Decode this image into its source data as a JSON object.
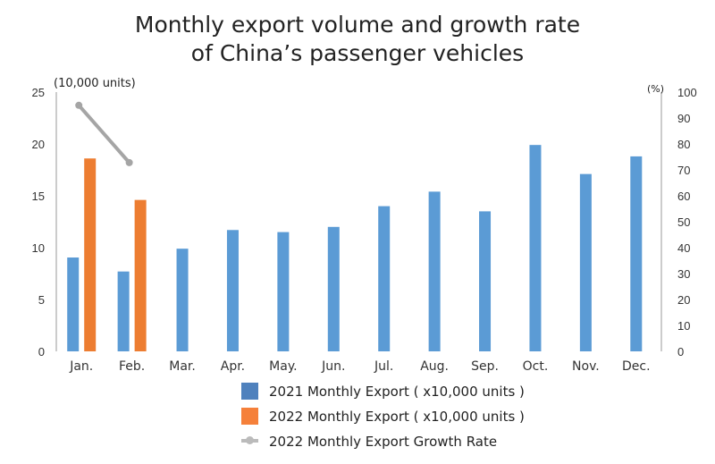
{
  "chart_data": {
    "type": "bar",
    "title_line1": "Monthly export volume and growth rate",
    "title_line2": "of China’s passenger vehicles",
    "left_unit": "(10,000 units)",
    "right_unit": "(%)",
    "categories": [
      "Jan.",
      "Feb.",
      "Mar.",
      "Apr.",
      "May.",
      "Jun.",
      "Jul.",
      "Aug.",
      "Sep.",
      "Oct.",
      "Nov.",
      "Dec."
    ],
    "ylim_left": [
      0,
      25
    ],
    "yticks_left": [
      0,
      5,
      10,
      15,
      20,
      25
    ],
    "ylim_right": [
      0,
      100
    ],
    "yticks_right": [
      0,
      10,
      20,
      30,
      40,
      50,
      60,
      70,
      80,
      90,
      100
    ],
    "grid": false,
    "legend_placement": "bottom",
    "series": [
      {
        "name": "2021 Monthly Export ( x10,000 units )",
        "kind": "bar",
        "axis": "left",
        "color": "#5b9bd5",
        "values": [
          9.05,
          7.7,
          9.9,
          11.7,
          11.5,
          12.0,
          14.0,
          15.4,
          13.5,
          19.9,
          17.1,
          18.8
        ]
      },
      {
        "name": "2022 Monthly Export ( x10,000 units )",
        "kind": "bar",
        "axis": "left",
        "color": "#ed7d31",
        "values": [
          18.6,
          14.6,
          null,
          null,
          null,
          null,
          null,
          null,
          null,
          null,
          null,
          null
        ]
      },
      {
        "name": "2022 Monthly Export Growth Rate",
        "kind": "line",
        "axis": "right",
        "color": "#a5a5a5",
        "values": [
          94.9,
          72.8,
          null,
          null,
          null,
          null,
          null,
          null,
          null,
          null,
          null,
          null
        ]
      }
    ]
  }
}
